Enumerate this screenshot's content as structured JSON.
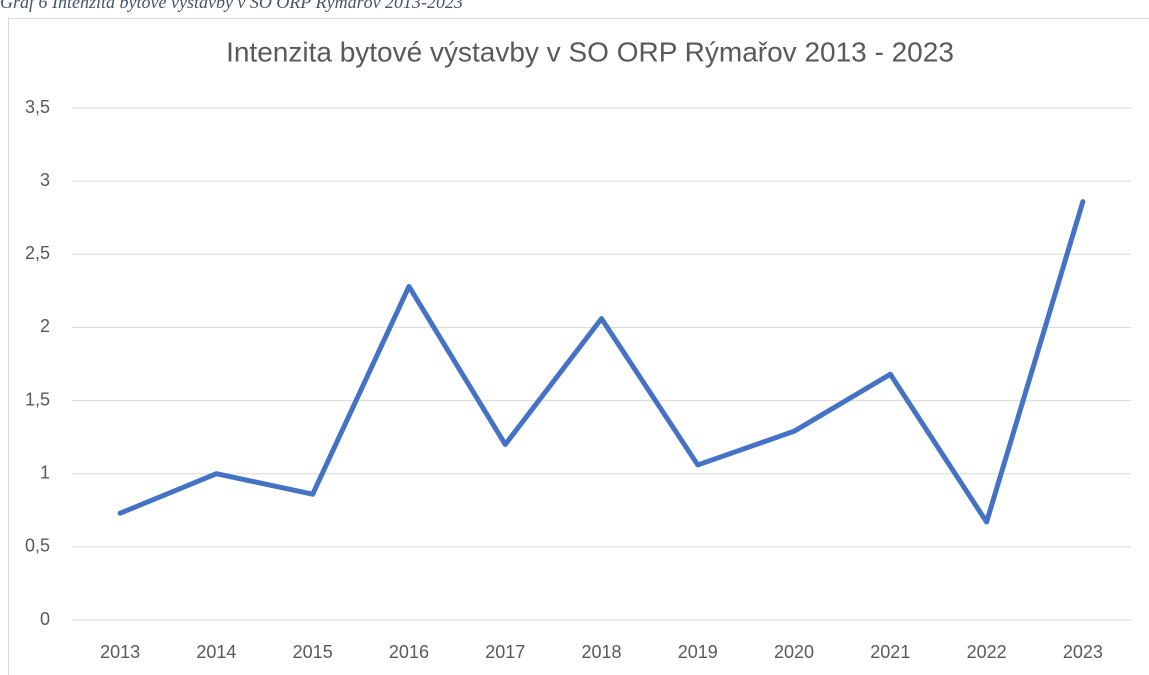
{
  "caption": "Graf 6 Intenzita bytové výstavby v SO ORP Rýmařov 2013-2023",
  "chart_data": {
    "type": "line",
    "title": "Intenzita bytové výstavby v SO ORP Rýmařov 2013 - 2023",
    "categories": [
      "2013",
      "2014",
      "2015",
      "2016",
      "2017",
      "2018",
      "2019",
      "2020",
      "2021",
      "2022",
      "2023"
    ],
    "values": [
      0.73,
      1.0,
      0.86,
      2.28,
      1.2,
      2.06,
      1.06,
      1.29,
      1.68,
      0.67,
      2.86
    ],
    "color": "#4472c4",
    "ylim": [
      0,
      3.5
    ],
    "yticks": [
      0,
      {
        "value": 0.5,
        "label": "0,5"
      },
      1,
      {
        "value": 1.5,
        "label": "1,5"
      },
      2,
      {
        "value": 2.5,
        "label": "2,5"
      },
      3,
      {
        "value": 3.5,
        "label": "3,5"
      }
    ],
    "grid": true
  }
}
